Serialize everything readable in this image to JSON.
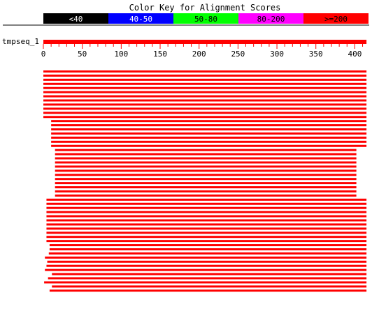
{
  "chart_data": {
    "type": "bar",
    "title": "Color Key for Alignment Scores",
    "color_key": [
      {
        "label": "<40",
        "color": "#000000",
        "text_color": "#ffffff"
      },
      {
        "label": "40-50",
        "color": "#0000ff",
        "text_color": "#ffffff"
      },
      {
        "label": "50-80",
        "color": "#00ff00",
        "text_color": "#000000"
      },
      {
        "label": "80-200",
        "color": "#ff00ff",
        "text_color": "#000000"
      },
      {
        "label": ">=200",
        "color": "#ff0000",
        "text_color": "#000000"
      }
    ],
    "query": {
      "name": "tmpseq_1",
      "start": 0,
      "end": 415,
      "color": "#ff0000"
    },
    "axis": {
      "min": 0,
      "max": 415,
      "tick_labels": [
        0,
        50,
        100,
        150,
        200,
        250,
        300,
        350,
        400
      ],
      "minor_step": 10
    },
    "alignments": [
      [
        0,
        415
      ],
      [
        0,
        415
      ],
      [
        0,
        415
      ],
      [
        0,
        415
      ],
      [
        0,
        415
      ],
      [
        0,
        415
      ],
      [
        0,
        415
      ],
      [
        0,
        415
      ],
      [
        0,
        415
      ],
      [
        0,
        415
      ],
      [
        0,
        415
      ],
      [
        0,
        415
      ],
      [
        10,
        415
      ],
      [
        10,
        415
      ],
      [
        10,
        415
      ],
      [
        10,
        415
      ],
      [
        10,
        415
      ],
      [
        10,
        415
      ],
      [
        10,
        415
      ],
      [
        15,
        402
      ],
      [
        15,
        402
      ],
      [
        15,
        402
      ],
      [
        15,
        402
      ],
      [
        15,
        402
      ],
      [
        15,
        402
      ],
      [
        15,
        402
      ],
      [
        15,
        402
      ],
      [
        15,
        402
      ],
      [
        15,
        402
      ],
      [
        15,
        402
      ],
      [
        15,
        402
      ],
      [
        4,
        415
      ],
      [
        4,
        415
      ],
      [
        4,
        415
      ],
      [
        4,
        415
      ],
      [
        4,
        415
      ],
      [
        4,
        415
      ],
      [
        4,
        415
      ],
      [
        4,
        415
      ],
      [
        4,
        415
      ],
      [
        4,
        415
      ],
      [
        4,
        415
      ],
      [
        8,
        415
      ],
      [
        8,
        415
      ],
      [
        7,
        415
      ],
      [
        2,
        415
      ],
      [
        5,
        415
      ],
      [
        4,
        415
      ],
      [
        2,
        415
      ],
      [
        11,
        415
      ],
      [
        6,
        415
      ],
      [
        1,
        415
      ],
      [
        11,
        415
      ],
      [
        8,
        415
      ]
    ],
    "alignment_color": "#ff0000"
  }
}
